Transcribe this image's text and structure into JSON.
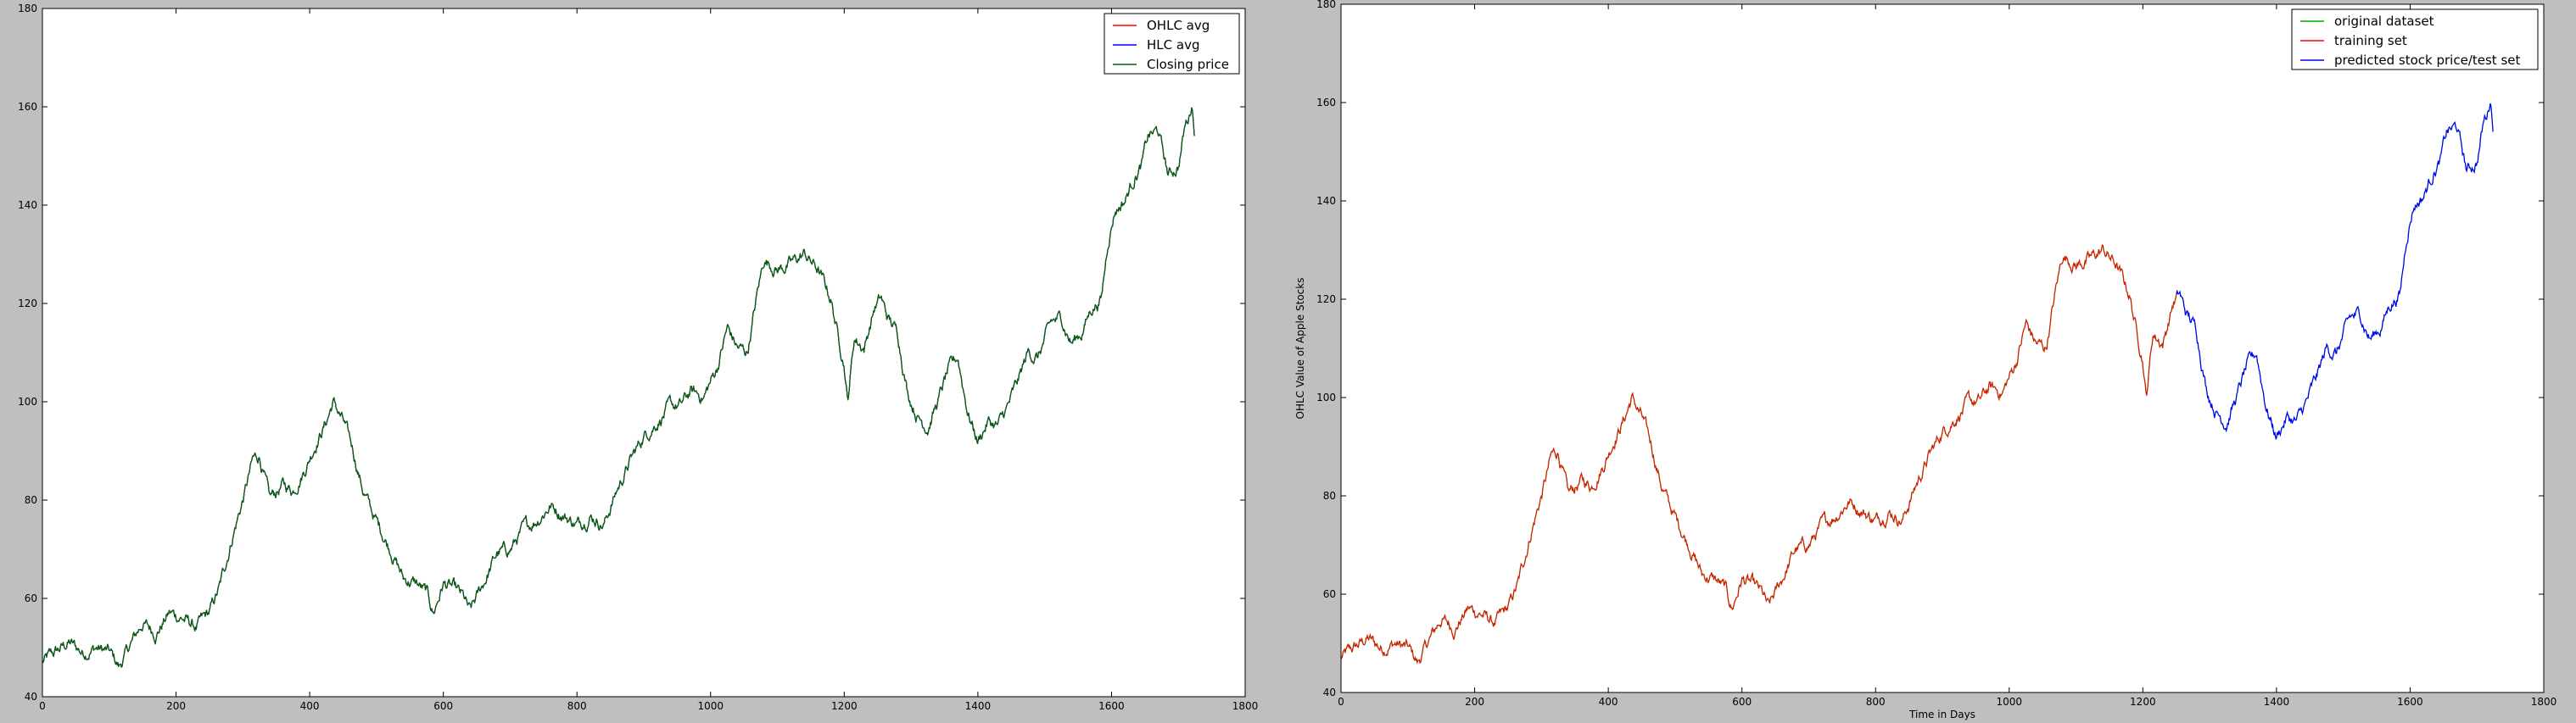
{
  "chart_data": [
    {
      "type": "line",
      "xlim": [
        0,
        1800
      ],
      "ylim": [
        40,
        180
      ],
      "x_ticks": [
        0,
        200,
        400,
        600,
        800,
        1000,
        1200,
        1400,
        1600,
        1800
      ],
      "y_ticks": [
        40,
        60,
        80,
        100,
        120,
        140,
        160,
        180
      ],
      "xlabel": "",
      "ylabel": "",
      "grid": false,
      "legend_position": "top-right",
      "anchors": [
        [
          0,
          47
        ],
        [
          20,
          49
        ],
        [
          40,
          51
        ],
        [
          60,
          49
        ],
        [
          80,
          50
        ],
        [
          100,
          49
        ],
        [
          115,
          46
        ],
        [
          130,
          50
        ],
        [
          150,
          55
        ],
        [
          170,
          53
        ],
        [
          190,
          57
        ],
        [
          210,
          56
        ],
        [
          230,
          54
        ],
        [
          250,
          57
        ],
        [
          265,
          62
        ],
        [
          285,
          73
        ],
        [
          300,
          80
        ],
        [
          315,
          88
        ],
        [
          325,
          89
        ],
        [
          340,
          80
        ],
        [
          360,
          83
        ],
        [
          375,
          82
        ],
        [
          395,
          87
        ],
        [
          410,
          92
        ],
        [
          425,
          96
        ],
        [
          435,
          100
        ],
        [
          450,
          96
        ],
        [
          465,
          90
        ],
        [
          480,
          82
        ],
        [
          495,
          77
        ],
        [
          510,
          73
        ],
        [
          525,
          69
        ],
        [
          540,
          64
        ],
        [
          560,
          63
        ],
        [
          575,
          61
        ],
        [
          585,
          57
        ],
        [
          600,
          63
        ],
        [
          615,
          62
        ],
        [
          630,
          60
        ],
        [
          640,
          57
        ],
        [
          660,
          63
        ],
        [
          680,
          69
        ],
        [
          700,
          70
        ],
        [
          720,
          74
        ],
        [
          740,
          76
        ],
        [
          760,
          79
        ],
        [
          780,
          77
        ],
        [
          800,
          75
        ],
        [
          820,
          77
        ],
        [
          840,
          75
        ],
        [
          860,
          82
        ],
        [
          880,
          88
        ],
        [
          900,
          93
        ],
        [
          920,
          96
        ],
        [
          940,
          99
        ],
        [
          955,
          99
        ],
        [
          970,
          102
        ],
        [
          990,
          101
        ],
        [
          1010,
          107
        ],
        [
          1025,
          115
        ],
        [
          1040,
          111
        ],
        [
          1055,
          110
        ],
        [
          1070,
          122
        ],
        [
          1080,
          129
        ],
        [
          1100,
          127
        ],
        [
          1120,
          128
        ],
        [
          1140,
          130
        ],
        [
          1160,
          127
        ],
        [
          1180,
          121
        ],
        [
          1190,
          114
        ],
        [
          1200,
          108
        ],
        [
          1205,
          100
        ],
        [
          1215,
          113
        ],
        [
          1230,
          111
        ],
        [
          1245,
          119
        ],
        [
          1255,
          121
        ],
        [
          1265,
          117
        ],
        [
          1280,
          114
        ],
        [
          1295,
          102
        ],
        [
          1310,
          97
        ],
        [
          1325,
          95
        ],
        [
          1340,
          100
        ],
        [
          1355,
          106
        ],
        [
          1370,
          109
        ],
        [
          1385,
          98
        ],
        [
          1400,
          92
        ],
        [
          1415,
          96
        ],
        [
          1430,
          95
        ],
        [
          1445,
          99
        ],
        [
          1460,
          104
        ],
        [
          1475,
          110
        ],
        [
          1490,
          109
        ],
        [
          1510,
          116
        ],
        [
          1525,
          117
        ],
        [
          1540,
          112
        ],
        [
          1555,
          114
        ],
        [
          1570,
          119
        ],
        [
          1585,
          121
        ],
        [
          1595,
          133
        ],
        [
          1605,
          139
        ],
        [
          1620,
          141
        ],
        [
          1635,
          146
        ],
        [
          1645,
          148
        ],
        [
          1655,
          154
        ],
        [
          1670,
          155
        ],
        [
          1685,
          146
        ],
        [
          1700,
          148
        ],
        [
          1710,
          156
        ],
        [
          1716,
          158
        ],
        [
          1720,
          161
        ],
        [
          1724,
          156
        ]
      ],
      "series": [
        {
          "name": "OHLC avg",
          "color": "#ff0000",
          "spike": {
            "x": 1205,
            "y": 100
          }
        },
        {
          "name": "HLC avg",
          "color": "#0000ff"
        },
        {
          "name": "Closing price",
          "color": "#006400"
        }
      ]
    },
    {
      "type": "line",
      "xlim": [
        0,
        1800
      ],
      "ylim": [
        40,
        180
      ],
      "x_ticks": [
        0,
        200,
        400,
        600,
        800,
        1000,
        1200,
        1400,
        1600,
        1800
      ],
      "y_ticks": [
        40,
        60,
        80,
        100,
        120,
        140,
        160,
        180
      ],
      "xlabel": "Time in Days",
      "ylabel": "OHLC Value of Apple Stocks",
      "grid": false,
      "legend_position": "top-right",
      "train_test_split_x": 1250,
      "series": [
        {
          "name": "original dataset",
          "color": "#00aa00"
        },
        {
          "name": "training set",
          "color": "#ff0000"
        },
        {
          "name": "predicted stock price/test set",
          "color": "#0000ff"
        }
      ]
    }
  ]
}
